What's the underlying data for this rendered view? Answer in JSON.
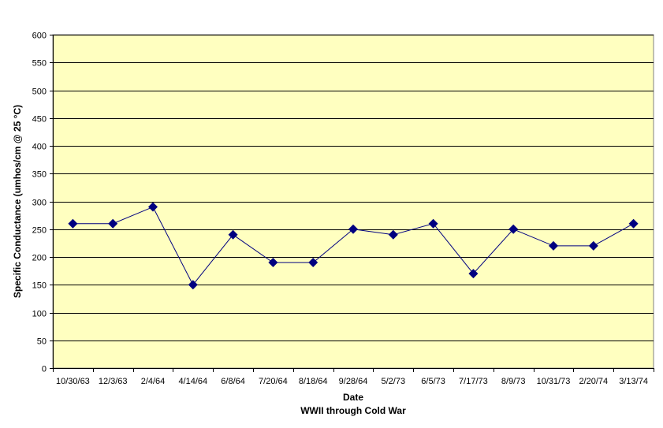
{
  "chart_data": {
    "type": "line",
    "title": "",
    "xlabel": "Date",
    "xlabel_sub": "WWII through Cold War",
    "ylabel": "Specific Conductance (umhos/cm @ 25 °C)",
    "ylim": [
      0,
      600
    ],
    "yticks": [
      0,
      50,
      100,
      150,
      200,
      250,
      300,
      350,
      400,
      450,
      500,
      550,
      600
    ],
    "grid": "horizontal",
    "legend": "none",
    "categories": [
      "10/30/63",
      "12/3/63",
      "2/4/64",
      "4/14/64",
      "6/8/64",
      "7/20/64",
      "8/18/64",
      "9/28/64",
      "5/2/73",
      "6/5/73",
      "7/17/73",
      "8/9/73",
      "10/31/73",
      "2/20/74",
      "3/13/74"
    ],
    "series": [
      {
        "values": [
          260,
          260,
          290,
          150,
          240,
          190,
          190,
          250,
          240,
          260,
          170,
          250,
          220,
          220,
          260
        ],
        "color": "#000080",
        "marker": "diamond"
      }
    ],
    "plot_background": "#ffffc0",
    "grid_color": "#000000"
  }
}
